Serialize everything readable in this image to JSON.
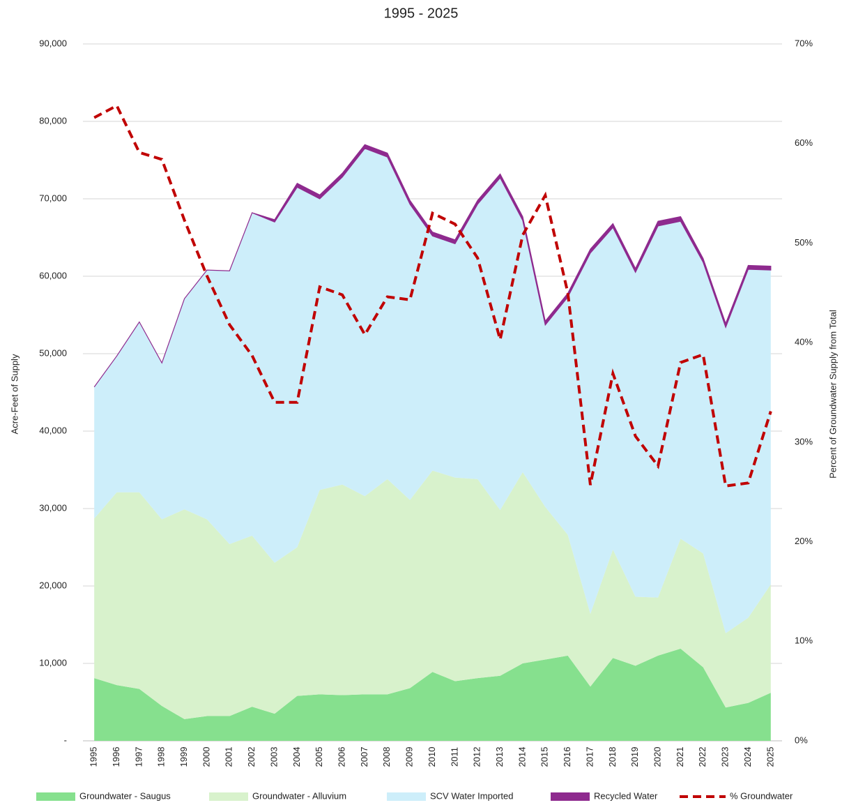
{
  "chart_data": {
    "type": "stacked_area_line",
    "title": "1995 - 2025",
    "y_label": "Acre-Feet of Supply",
    "y2_label": "Percent of Groundwater Supply from Total",
    "categories": [
      "1995",
      "1996",
      "1997",
      "1998",
      "1999",
      "2000",
      "2001",
      "2002",
      "2003",
      "2004",
      "2005",
      "2006",
      "2007",
      "2008",
      "2009",
      "2010",
      "2011",
      "2012",
      "2013",
      "2014",
      "2015",
      "2016",
      "2017",
      "2018",
      "2019",
      "2020",
      "2021",
      "2022",
      "2023",
      "2024",
      "2025"
    ],
    "series": [
      {
        "name": "Groundwater - Saugus",
        "color": "#86e08e",
        "kind": "area",
        "values": [
          8100,
          7200,
          6700,
          4500,
          2800,
          3200,
          3200,
          4400,
          3500,
          5800,
          6000,
          5900,
          6000,
          6000,
          6800,
          8900,
          7700,
          8100,
          8400,
          10000,
          10500,
          11000,
          7000,
          10700,
          9700,
          11000,
          11900,
          9500,
          4300,
          4900,
          6200
        ]
      },
      {
        "name": "Groundwater - Alluvium",
        "color": "#d8f2cc",
        "kind": "area",
        "values": [
          20600,
          24900,
          25400,
          24100,
          27100,
          25400,
          22200,
          22100,
          19500,
          19200,
          26400,
          27200,
          25600,
          27800,
          24300,
          26000,
          26300,
          25700,
          21400,
          24700,
          19700,
          15600,
          9400,
          14000,
          8900,
          7500,
          14200,
          14700,
          9600,
          11000,
          14000
        ]
      },
      {
        "name": "SCV Water Imported",
        "color": "#cdeefa",
        "kind": "area",
        "values": [
          17000,
          17600,
          22000,
          20200,
          27200,
          32200,
          35300,
          41700,
          44000,
          46500,
          37600,
          39700,
          44900,
          41600,
          38200,
          30300,
          30200,
          35500,
          42900,
          32500,
          23500,
          30700,
          46600,
          41600,
          41900,
          48000,
          41000,
          37600,
          39500,
          45000,
          40600
        ]
      },
      {
        "name": "Recycled Water",
        "color": "#8e2a8e",
        "kind": "area",
        "values": [
          0,
          0,
          0,
          0,
          0,
          0,
          0,
          0,
          300,
          500,
          500,
          500,
          500,
          500,
          500,
          500,
          500,
          500,
          500,
          500,
          500,
          500,
          500,
          500,
          500,
          600,
          600,
          500,
          500,
          500,
          500
        ]
      },
      {
        "name": "% Groundwater",
        "color": "#c00000",
        "kind": "line",
        "axis": "y2",
        "values": [
          62.6,
          63.8,
          59.1,
          58.4,
          52.3,
          46.7,
          41.8,
          38.7,
          34.0,
          34.0,
          45.6,
          44.8,
          40.8,
          44.6,
          44.3,
          53.0,
          51.9,
          48.5,
          40.3,
          50.8,
          54.8,
          45.0,
          25.7,
          36.9,
          30.6,
          27.6,
          38.0,
          38.8,
          25.6,
          25.9,
          33.1
        ]
      }
    ],
    "ylim": [
      0,
      90000
    ],
    "yticks": [
      {
        "value": 0,
        "label": "-"
      },
      {
        "value": 10000,
        "label": "10,000"
      },
      {
        "value": 20000,
        "label": "20,000"
      },
      {
        "value": 30000,
        "label": "30,000"
      },
      {
        "value": 40000,
        "label": "40,000"
      },
      {
        "value": 50000,
        "label": "50,000"
      },
      {
        "value": 60000,
        "label": "60,000"
      },
      {
        "value": 70000,
        "label": "70,000"
      },
      {
        "value": 80000,
        "label": "80,000"
      },
      {
        "value": 90000,
        "label": "90,000"
      }
    ],
    "y2lim": [
      0,
      70
    ],
    "y2ticks": [
      {
        "value": 0,
        "label": "0%"
      },
      {
        "value": 10,
        "label": "10%"
      },
      {
        "value": 20,
        "label": "20%"
      },
      {
        "value": 30,
        "label": "30%"
      },
      {
        "value": 40,
        "label": "40%"
      },
      {
        "value": 50,
        "label": "50%"
      },
      {
        "value": 60,
        "label": "60%"
      },
      {
        "value": 70,
        "label": "70%"
      }
    ],
    "grid": true,
    "legend": "bottom"
  }
}
